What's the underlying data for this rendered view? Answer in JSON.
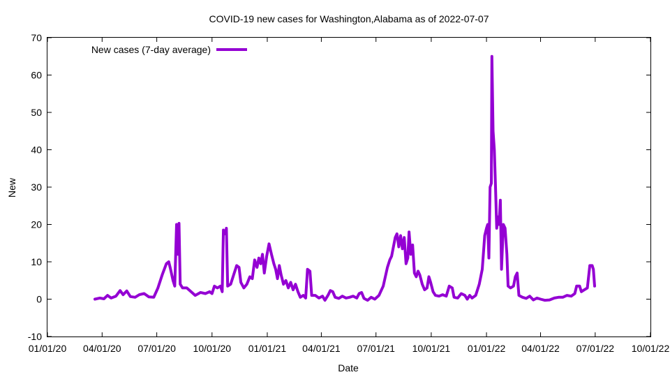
{
  "chart_data": {
    "type": "line",
    "title": "COVID-19 new cases for Washington,Alabama as of 2022-07-07",
    "xlabel": "Date",
    "ylabel": "New",
    "ylim": [
      -10,
      70
    ],
    "yticks": [
      -10,
      0,
      10,
      20,
      30,
      40,
      50,
      60,
      70
    ],
    "xlim": [
      "2020-01-01",
      "2022-10-01"
    ],
    "xticks": [
      "2020-01-01",
      "2020-04-01",
      "2020-07-01",
      "2020-10-01",
      "2021-01-01",
      "2021-04-01",
      "2021-07-01",
      "2021-10-01",
      "2022-01-01",
      "2022-04-01",
      "2022-07-01",
      "2022-10-01"
    ],
    "xtick_labels": [
      "01/01/20",
      "04/01/20",
      "07/01/20",
      "10/01/20",
      "01/01/21",
      "04/01/21",
      "07/01/21",
      "10/01/21",
      "01/01/22",
      "04/01/22",
      "07/01/22",
      "10/01/22"
    ],
    "grid": false,
    "legend_position": "top-left",
    "series": [
      {
        "name": "New cases (7-day average)",
        "color": "#9400d3",
        "points": [
          [
            "2020-03-20",
            0
          ],
          [
            "2020-03-28",
            0.3
          ],
          [
            "2020-04-04",
            0.1
          ],
          [
            "2020-04-10",
            1.0
          ],
          [
            "2020-04-16",
            0.3
          ],
          [
            "2020-04-24",
            0.8
          ],
          [
            "2020-05-01",
            2.3
          ],
          [
            "2020-05-06",
            1.2
          ],
          [
            "2020-05-12",
            2.2
          ],
          [
            "2020-05-18",
            0.7
          ],
          [
            "2020-05-26",
            0.5
          ],
          [
            "2020-06-02",
            1.2
          ],
          [
            "2020-06-10",
            1.5
          ],
          [
            "2020-06-18",
            0.6
          ],
          [
            "2020-06-26",
            0.5
          ],
          [
            "2020-07-03",
            3.0
          ],
          [
            "2020-07-10",
            6.5
          ],
          [
            "2020-07-17",
            9.5
          ],
          [
            "2020-07-21",
            10.0
          ],
          [
            "2020-07-24",
            8.0
          ],
          [
            "2020-07-28",
            5.0
          ],
          [
            "2020-07-31",
            3.5
          ],
          [
            "2020-08-03",
            20.0
          ],
          [
            "2020-08-05",
            12.0
          ],
          [
            "2020-08-07",
            20.3
          ],
          [
            "2020-08-09",
            4.0
          ],
          [
            "2020-08-13",
            3.0
          ],
          [
            "2020-08-20",
            3.0
          ],
          [
            "2020-08-27",
            2.0
          ],
          [
            "2020-09-03",
            1.0
          ],
          [
            "2020-09-12",
            1.8
          ],
          [
            "2020-09-20",
            1.5
          ],
          [
            "2020-09-27",
            2.0
          ],
          [
            "2020-10-01",
            1.5
          ],
          [
            "2020-10-05",
            3.5
          ],
          [
            "2020-10-10",
            3.0
          ],
          [
            "2020-10-15",
            3.5
          ],
          [
            "2020-10-18",
            2.0
          ],
          [
            "2020-10-20",
            18.5
          ],
          [
            "2020-10-23",
            17.5
          ],
          [
            "2020-10-25",
            19.0
          ],
          [
            "2020-10-27",
            3.5
          ],
          [
            "2020-11-01",
            4.0
          ],
          [
            "2020-11-06",
            6.5
          ],
          [
            "2020-11-11",
            9.0
          ],
          [
            "2020-11-15",
            8.5
          ],
          [
            "2020-11-18",
            4.5
          ],
          [
            "2020-11-23",
            3.0
          ],
          [
            "2020-11-28",
            4.0
          ],
          [
            "2020-12-03",
            6.0
          ],
          [
            "2020-12-07",
            5.5
          ],
          [
            "2020-12-11",
            10.5
          ],
          [
            "2020-12-15",
            8.5
          ],
          [
            "2020-12-18",
            11.0
          ],
          [
            "2020-12-21",
            9.5
          ],
          [
            "2020-12-24",
            12.0
          ],
          [
            "2020-12-27",
            7.0
          ],
          [
            "2020-12-31",
            11.5
          ],
          [
            "2021-01-04",
            14.8
          ],
          [
            "2021-01-08",
            12.0
          ],
          [
            "2021-01-12",
            9.5
          ],
          [
            "2021-01-15",
            8.0
          ],
          [
            "2021-01-18",
            5.5
          ],
          [
            "2021-01-21",
            9.0
          ],
          [
            "2021-01-24",
            6.5
          ],
          [
            "2021-01-28",
            4.0
          ],
          [
            "2021-02-01",
            5.0
          ],
          [
            "2021-02-05",
            3.0
          ],
          [
            "2021-02-09",
            4.5
          ],
          [
            "2021-02-13",
            2.5
          ],
          [
            "2021-02-17",
            4.0
          ],
          [
            "2021-02-21",
            2.0
          ],
          [
            "2021-02-25",
            0.5
          ],
          [
            "2021-03-02",
            1.0
          ],
          [
            "2021-03-06",
            0.3
          ],
          [
            "2021-03-09",
            8.0
          ],
          [
            "2021-03-13",
            7.5
          ],
          [
            "2021-03-16",
            1.0
          ],
          [
            "2021-03-22",
            1.0
          ],
          [
            "2021-03-28",
            0.3
          ],
          [
            "2021-04-03",
            0.8
          ],
          [
            "2021-04-07",
            -0.3
          ],
          [
            "2021-04-12",
            1.0
          ],
          [
            "2021-04-16",
            2.3
          ],
          [
            "2021-04-20",
            2.0
          ],
          [
            "2021-04-24",
            0.5
          ],
          [
            "2021-04-30",
            0.2
          ],
          [
            "2021-05-06",
            0.8
          ],
          [
            "2021-05-12",
            0.3
          ],
          [
            "2021-05-18",
            0.5
          ],
          [
            "2021-05-24",
            0.8
          ],
          [
            "2021-05-30",
            0.3
          ],
          [
            "2021-06-03",
            1.5
          ],
          [
            "2021-06-07",
            1.8
          ],
          [
            "2021-06-11",
            0.2
          ],
          [
            "2021-06-17",
            -0.3
          ],
          [
            "2021-06-23",
            0.5
          ],
          [
            "2021-06-29",
            0.0
          ],
          [
            "2021-07-06",
            1.0
          ],
          [
            "2021-07-13",
            3.5
          ],
          [
            "2021-07-20",
            8.5
          ],
          [
            "2021-07-24",
            10.5
          ],
          [
            "2021-07-27",
            11.5
          ],
          [
            "2021-07-30",
            14.0
          ],
          [
            "2021-08-02",
            16.5
          ],
          [
            "2021-08-05",
            17.5
          ],
          [
            "2021-08-08",
            14.0
          ],
          [
            "2021-08-11",
            17.0
          ],
          [
            "2021-08-14",
            13.5
          ],
          [
            "2021-08-17",
            16.5
          ],
          [
            "2021-08-20",
            9.5
          ],
          [
            "2021-08-23",
            11.0
          ],
          [
            "2021-08-25",
            18.0
          ],
          [
            "2021-08-28",
            12.0
          ],
          [
            "2021-08-31",
            14.5
          ],
          [
            "2021-09-03",
            7.0
          ],
          [
            "2021-09-06",
            6.0
          ],
          [
            "2021-09-09",
            7.5
          ],
          [
            "2021-09-12",
            6.5
          ],
          [
            "2021-09-16",
            4.0
          ],
          [
            "2021-09-20",
            2.5
          ],
          [
            "2021-09-24",
            3.0
          ],
          [
            "2021-09-27",
            6.0
          ],
          [
            "2021-09-30",
            4.5
          ],
          [
            "2021-10-04",
            2.0
          ],
          [
            "2021-10-08",
            1.0
          ],
          [
            "2021-10-14",
            0.8
          ],
          [
            "2021-10-20",
            1.2
          ],
          [
            "2021-10-26",
            0.8
          ],
          [
            "2021-10-31",
            3.5
          ],
          [
            "2021-11-05",
            3.0
          ],
          [
            "2021-11-08",
            0.5
          ],
          [
            "2021-11-14",
            0.3
          ],
          [
            "2021-11-20",
            1.5
          ],
          [
            "2021-11-26",
            1.0
          ],
          [
            "2021-11-30",
            0.0
          ],
          [
            "2021-12-04",
            1.0
          ],
          [
            "2021-12-08",
            0.3
          ],
          [
            "2021-12-14",
            1.0
          ],
          [
            "2021-12-20",
            4.0
          ],
          [
            "2021-12-25",
            8.0
          ],
          [
            "2021-12-29",
            17.0
          ],
          [
            "2022-01-01",
            19.0
          ],
          [
            "2022-01-03",
            20.0
          ],
          [
            "2022-01-05",
            11.0
          ],
          [
            "2022-01-07",
            30.0
          ],
          [
            "2022-01-09",
            31.0
          ],
          [
            "2022-01-10",
            65.0
          ],
          [
            "2022-01-12",
            45.0
          ],
          [
            "2022-01-14",
            40.0
          ],
          [
            "2022-01-16",
            30.0
          ],
          [
            "2022-01-18",
            19.0
          ],
          [
            "2022-01-20",
            22.0
          ],
          [
            "2022-01-22",
            20.0
          ],
          [
            "2022-01-24",
            26.5
          ],
          [
            "2022-01-26",
            8.0
          ],
          [
            "2022-01-29",
            20.0
          ],
          [
            "2022-02-01",
            19.0
          ],
          [
            "2022-02-04",
            12.0
          ],
          [
            "2022-02-06",
            3.5
          ],
          [
            "2022-02-10",
            3.0
          ],
          [
            "2022-02-15",
            3.5
          ],
          [
            "2022-02-18",
            6.0
          ],
          [
            "2022-02-21",
            7.0
          ],
          [
            "2022-02-24",
            1.0
          ],
          [
            "2022-03-02",
            0.5
          ],
          [
            "2022-03-08",
            0.2
          ],
          [
            "2022-03-14",
            0.8
          ],
          [
            "2022-03-20",
            -0.2
          ],
          [
            "2022-03-26",
            0.3
          ],
          [
            "2022-04-01",
            0.0
          ],
          [
            "2022-04-08",
            -0.3
          ],
          [
            "2022-04-16",
            -0.2
          ],
          [
            "2022-04-24",
            0.3
          ],
          [
            "2022-05-01",
            0.5
          ],
          [
            "2022-05-08",
            0.5
          ],
          [
            "2022-05-15",
            1.0
          ],
          [
            "2022-05-22",
            0.8
          ],
          [
            "2022-05-28",
            1.5
          ],
          [
            "2022-05-31",
            3.5
          ],
          [
            "2022-06-05",
            3.5
          ],
          [
            "2022-06-08",
            2.0
          ],
          [
            "2022-06-13",
            2.5
          ],
          [
            "2022-06-18",
            3.0
          ],
          [
            "2022-06-22",
            9.0
          ],
          [
            "2022-06-26",
            9.0
          ],
          [
            "2022-06-28",
            8.0
          ],
          [
            "2022-06-30",
            3.5
          ]
        ]
      }
    ]
  }
}
